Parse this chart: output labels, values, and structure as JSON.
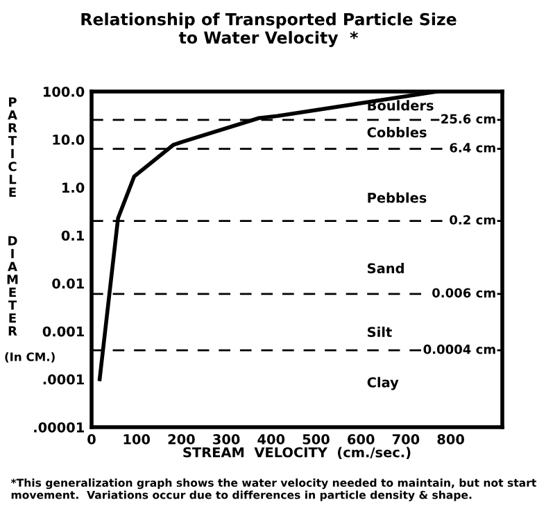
{
  "chart_data": {
    "type": "line",
    "title": "Relationship of Transported Particle Size\nto Water Velocity  *",
    "xlabel": "STREAM  VELOCITY  (cm./sec.)",
    "ylabel": "PARTICLE DIAMETER (In CM.)",
    "series": [
      {
        "color": "#000000",
        "x": [
          18,
          59,
          95,
          182,
          203,
          373,
          414,
          770
        ],
        "values": [
          0.0001,
          0.23,
          1.7,
          7.7,
          9,
          28,
          31,
          100
        ]
      }
    ],
    "log": "y",
    "xlim": [
      0,
      915
    ],
    "ylim": [
      1e-05,
      100
    ],
    "xticks": [
      0,
      100,
      200,
      300,
      400,
      500,
      600,
      700,
      800
    ],
    "yticks": [
      {
        "value": 100,
        "label": "100.0"
      },
      {
        "value": 10,
        "label": "10.0"
      },
      {
        "value": 1,
        "label": "1.0"
      },
      {
        "value": 0.1,
        "label": "0.1"
      },
      {
        "value": 0.01,
        "label": "0.01"
      },
      {
        "value": 0.001,
        "label": "0.001"
      },
      {
        "value": 0.0001,
        "label": ".0001"
      },
      {
        "value": 1e-05,
        "label": ".00001"
      }
    ],
    "ref_lines": [
      {
        "axis": "y",
        "value": 25.6,
        "label": "25.6 cm",
        "line_style": "dashed",
        "color": "#000000"
      },
      {
        "axis": "y",
        "value": 6.4,
        "label": "6.4 cm",
        "line_style": "dashed",
        "color": "#000000"
      },
      {
        "axis": "y",
        "value": 0.2,
        "label": "0.2 cm",
        "line_style": "dashed",
        "color": "#000000"
      },
      {
        "axis": "y",
        "value": 0.006,
        "label": "0.006 cm",
        "line_style": "dashed",
        "color": "#000000"
      },
      {
        "axis": "y",
        "value": 0.0004,
        "label": "0.0004 cm",
        "line_style": "dashed",
        "color": "#000000"
      }
    ],
    "annotations": [
      "Boulders",
      "Cobbles",
      "Pebbles",
      "Sand",
      "Silt",
      "Clay",
      "*This generalization graph shows the water velocity needed to maintain, but not start movement.  Variations occur due to differences in particle density & shape."
    ],
    "grid": false,
    "legend": false,
    "marker": "none",
    "line_style": "solid"
  }
}
